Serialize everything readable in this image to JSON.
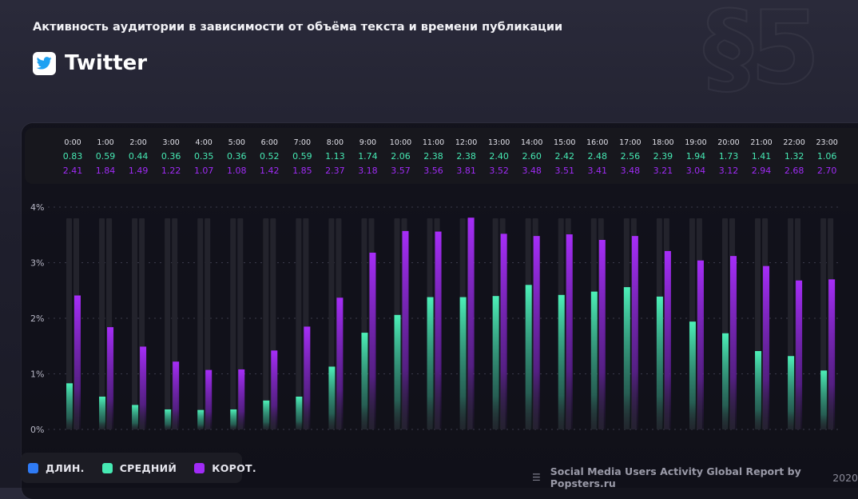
{
  "header": {
    "title": "Активность аудитории в зависимости от объёма текста и времени публикации",
    "platform": "Twitter",
    "platform_icon": "twitter-bird-icon",
    "section_number": "§5"
  },
  "legend": [
    {
      "label": "ДЛИН.",
      "color": "#2f7bf5"
    },
    {
      "label": "СРЕДНИЙ",
      "color": "#46e9b3"
    },
    {
      "label": "КОРОТ.",
      "color": "#a02bf6"
    }
  ],
  "footer": {
    "source": "Social Media Users Activity Global Report by Popsters.ru",
    "year": "2020"
  },
  "chart_data": {
    "type": "bar",
    "categories": [
      "0:00",
      "1:00",
      "2:00",
      "3:00",
      "4:00",
      "5:00",
      "6:00",
      "7:00",
      "8:00",
      "9:00",
      "10:00",
      "11:00",
      "12:00",
      "13:00",
      "14:00",
      "15:00",
      "16:00",
      "17:00",
      "18:00",
      "19:00",
      "20:00",
      "21:00",
      "22:00",
      "23:00"
    ],
    "series": [
      {
        "name": "ДЛИН.",
        "color": "#2f7bf5",
        "values": [
          0,
          0,
          0,
          0,
          0,
          0,
          0,
          0,
          0,
          0,
          0,
          0,
          0,
          0,
          0,
          0,
          0,
          0,
          0,
          0,
          0,
          0,
          0,
          0
        ]
      },
      {
        "name": "СРЕДНИЙ",
        "color": "#46e9b3",
        "values": [
          0.83,
          0.59,
          0.44,
          0.36,
          0.35,
          0.36,
          0.52,
          0.59,
          1.13,
          1.74,
          2.06,
          2.38,
          2.38,
          2.4,
          2.6,
          2.42,
          2.48,
          2.56,
          2.39,
          1.94,
          1.73,
          1.41,
          1.32,
          1.06
        ]
      },
      {
        "name": "КОРОТ.",
        "color": "#a02bf6",
        "values": [
          2.41,
          1.84,
          1.49,
          1.22,
          1.07,
          1.08,
          1.42,
          1.85,
          2.37,
          3.18,
          3.57,
          3.56,
          3.81,
          3.52,
          3.48,
          3.51,
          3.41,
          3.48,
          3.21,
          3.04,
          3.12,
          2.94,
          2.68,
          2.7
        ]
      }
    ],
    "table_rows": [
      {
        "series": "СРЕДНИЙ",
        "color": "#46e9b3",
        "values": [
          "0.83",
          "0.59",
          "0.44",
          "0.36",
          "0.35",
          "0.36",
          "0.52",
          "0.59",
          "1.13",
          "1.74",
          "2.06",
          "2.38",
          "2.38",
          "2.40",
          "2.60",
          "2.42",
          "2.48",
          "2.56",
          "2.39",
          "1.94",
          "1.73",
          "1.41",
          "1.32",
          "1.06"
        ]
      },
      {
        "series": "КОРОТ.",
        "color": "#a02bf6",
        "values": [
          "2.41",
          "1.84",
          "1.49",
          "1.22",
          "1.07",
          "1.08",
          "1.42",
          "1.85",
          "2.37",
          "3.18",
          "3.57",
          "3.56",
          "3.81",
          "3.52",
          "3.48",
          "3.51",
          "3.41",
          "3.48",
          "3.21",
          "3.04",
          "3.12",
          "2.94",
          "2.68",
          "2.70"
        ]
      }
    ],
    "ylim": [
      0,
      4
    ],
    "yticks": [
      "0%",
      "1%",
      "2%",
      "3%",
      "4%"
    ],
    "grid": true,
    "legend_position": "bottom-left"
  }
}
